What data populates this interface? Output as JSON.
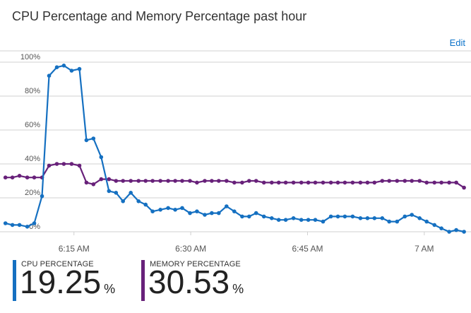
{
  "tile": {
    "title": "CPU Percentage and Memory Percentage past hour",
    "edit_label": "Edit"
  },
  "colors": {
    "cpu": "#1570c1",
    "memory": "#68217a",
    "grid": "#d0d0d0",
    "axis_text": "#555555"
  },
  "chart_data": {
    "type": "line",
    "y_tick_labels": [
      "0%",
      "20%",
      "40%",
      "60%",
      "80%",
      "100%"
    ],
    "ylim": [
      0,
      100
    ],
    "x_tick_labels": [
      "6:15 AM",
      "6:30 AM",
      "6:45 AM",
      "7 AM"
    ],
    "x_tick_minutes": [
      15,
      30,
      45,
      60
    ],
    "xlim_minutes": [
      5.5,
      66
    ],
    "series": [
      {
        "name": "CPU PERCENTAGE",
        "color": "#1570c1",
        "x": [
          6.2,
          7.1,
          8.0,
          9.0,
          9.9,
          10.9,
          11.8,
          12.8,
          13.7,
          14.7,
          15.7,
          16.6,
          17.5,
          18.5,
          19.5,
          20.4,
          21.3,
          22.3,
          23.3,
          24.2,
          25.1,
          26.1,
          27.1,
          28.0,
          28.9,
          29.9,
          30.8,
          31.8,
          32.7,
          33.6,
          34.6,
          35.6,
          36.6,
          37.5,
          38.4,
          39.4,
          40.4,
          41.3,
          42.2,
          43.2,
          44.2,
          45.1,
          46.0,
          47.0,
          48.0,
          48.9,
          49.8,
          50.8,
          51.8,
          52.7,
          53.6,
          54.6,
          55.5,
          56.5,
          57.5,
          58.4,
          59.4,
          60.3,
          61.3,
          62.2,
          63.2,
          64.1,
          65.1
        ],
        "values": [
          5,
          4,
          4,
          3,
          5,
          21,
          92,
          97,
          98,
          95,
          96,
          54,
          55,
          44,
          24,
          23,
          18,
          23,
          18,
          16,
          12,
          13,
          14,
          13,
          14,
          11,
          12,
          10,
          11,
          11,
          15,
          12,
          9,
          9,
          11,
          9,
          8,
          7,
          7,
          8,
          7,
          7,
          7,
          6,
          9,
          9,
          9,
          9,
          8,
          8,
          8,
          8,
          6,
          6,
          9,
          10,
          8,
          6,
          4,
          2,
          0,
          1,
          0
        ]
      },
      {
        "name": "MEMORY PERCENTAGE",
        "color": "#68217a",
        "x": [
          6.2,
          7.1,
          8.0,
          9.0,
          9.9,
          10.9,
          11.8,
          12.8,
          13.7,
          14.7,
          15.7,
          16.6,
          17.5,
          18.5,
          19.5,
          20.4,
          21.3,
          22.3,
          23.3,
          24.2,
          25.1,
          26.1,
          27.1,
          28.0,
          28.9,
          29.9,
          30.8,
          31.8,
          32.7,
          33.6,
          34.6,
          35.6,
          36.6,
          37.5,
          38.4,
          39.4,
          40.4,
          41.3,
          42.2,
          43.2,
          44.2,
          45.1,
          46.0,
          47.0,
          48.0,
          48.9,
          49.8,
          50.8,
          51.8,
          52.7,
          53.6,
          54.6,
          55.5,
          56.5,
          57.5,
          58.4,
          59.4,
          60.3,
          61.3,
          62.2,
          63.2,
          64.1,
          65.1
        ],
        "values": [
          32,
          32,
          33,
          32,
          32,
          32,
          39,
          40,
          40,
          40,
          39,
          29,
          28,
          31,
          31,
          30,
          30,
          30,
          30,
          30,
          30,
          30,
          30,
          30,
          30,
          30,
          29,
          30,
          30,
          30,
          30,
          29,
          29,
          30,
          30,
          29,
          29,
          29,
          29,
          29,
          29,
          29,
          29,
          29,
          29,
          29,
          29,
          29,
          29,
          29,
          29,
          30,
          30,
          30,
          30,
          30,
          30,
          29,
          29,
          29,
          29,
          29,
          26
        ]
      }
    ]
  },
  "summaries": {
    "cpu": {
      "label": "CPU PERCENTAGE",
      "value": "19.25",
      "unit": "%"
    },
    "memory": {
      "label": "MEMORY PERCENTAGE",
      "value": "30.53",
      "unit": "%"
    }
  }
}
